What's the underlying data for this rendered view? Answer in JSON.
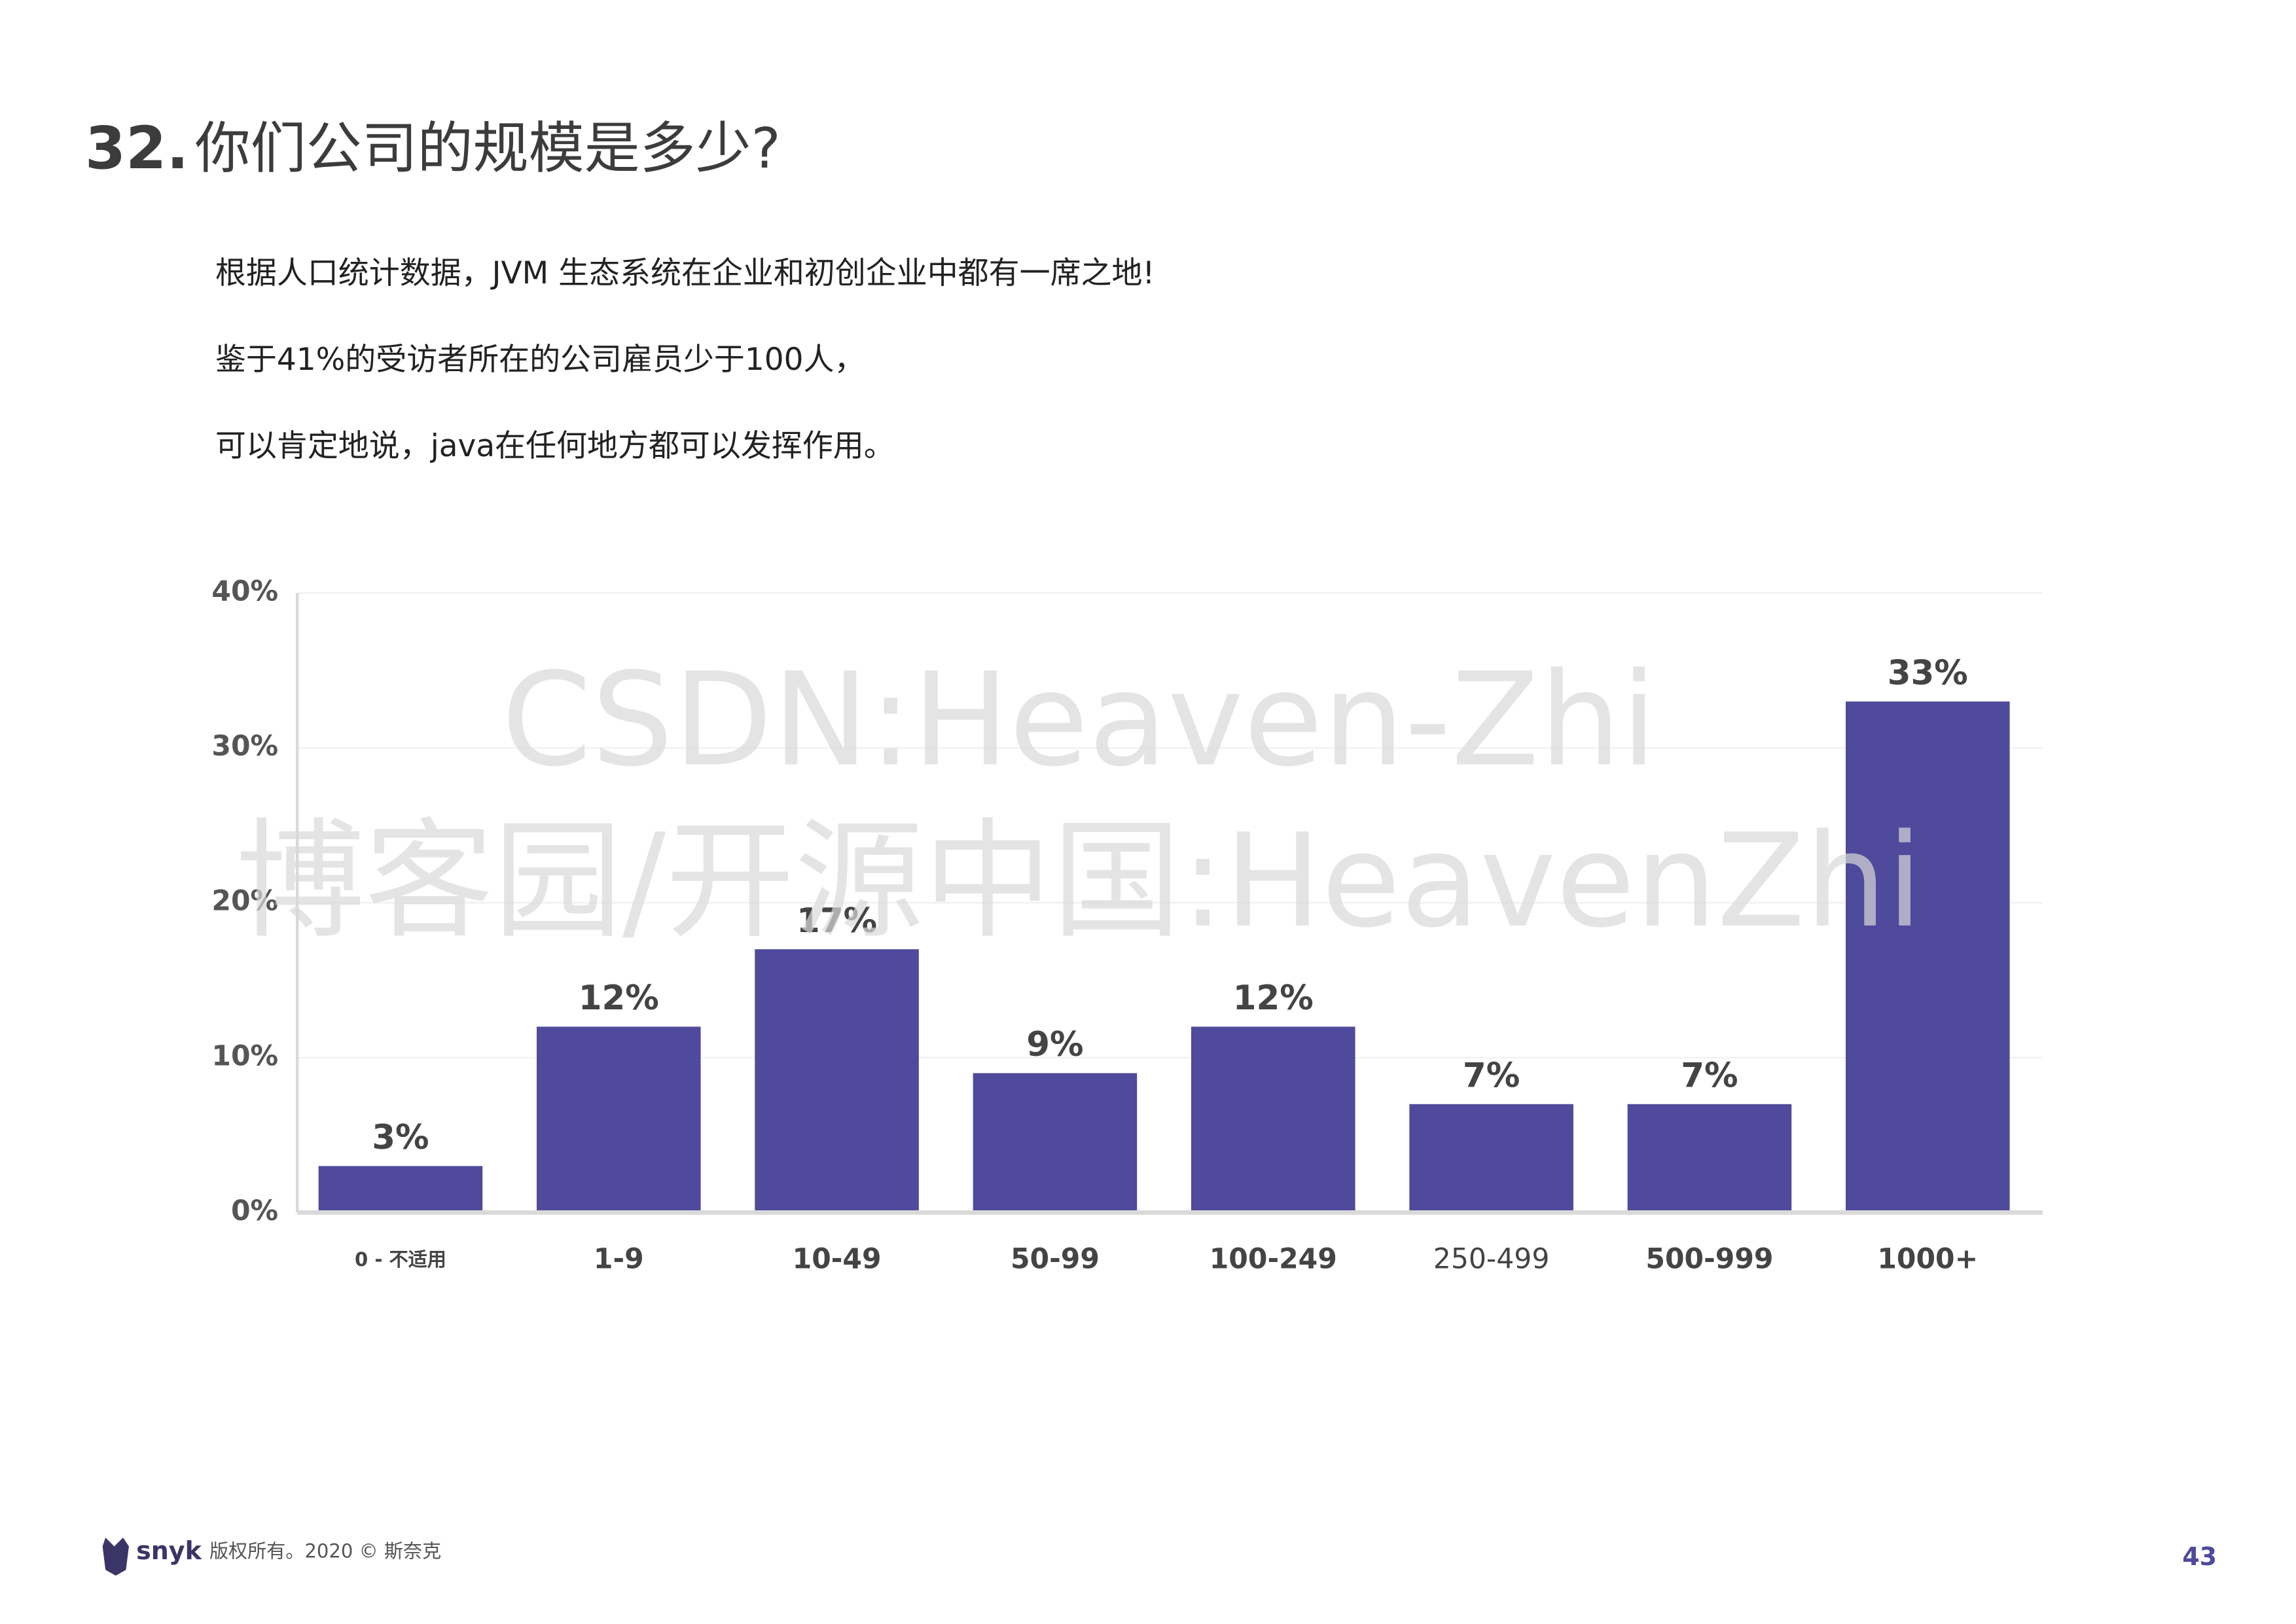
{
  "heading": {
    "number": "32.",
    "text": "你们公司的规模是多少?"
  },
  "paragraphs": [
    "根据人口统计数据，JVM 生态系统在企业和初创企业中都有一席之地!",
    "鉴于41%的受访者所在的公司雇员少于100人，",
    "可以肯定地说，java在任何地方都可以发挥作用。"
  ],
  "watermark": [
    "CSDN:Heaven-Zhi",
    "博客园/开源中国:HeavenZhi"
  ],
  "chart_data": {
    "type": "bar",
    "categories": [
      "0 - 不适用",
      "1-9",
      "10-49",
      "50-99",
      "100-249",
      "250-499",
      "500-999",
      "1000+"
    ],
    "values": [
      3,
      12,
      17,
      9,
      12,
      7,
      7,
      33
    ],
    "value_labels": [
      "3%",
      "12%",
      "17%",
      "9%",
      "12%",
      "7%",
      "7%",
      "33%"
    ],
    "color": "#4f4a9c",
    "ylim": [
      0,
      40
    ],
    "yticks": [
      {
        "value": 0,
        "label": "0%"
      },
      {
        "value": 10,
        "label": "10%"
      },
      {
        "value": 20,
        "label": "20%"
      },
      {
        "value": 30,
        "label": "30%"
      },
      {
        "value": 40,
        "label": "40%"
      }
    ],
    "grid": true
  },
  "footer": {
    "brand": "snyk",
    "copyright": "版权所有。2020 © 斯奈克",
    "page": "43"
  }
}
